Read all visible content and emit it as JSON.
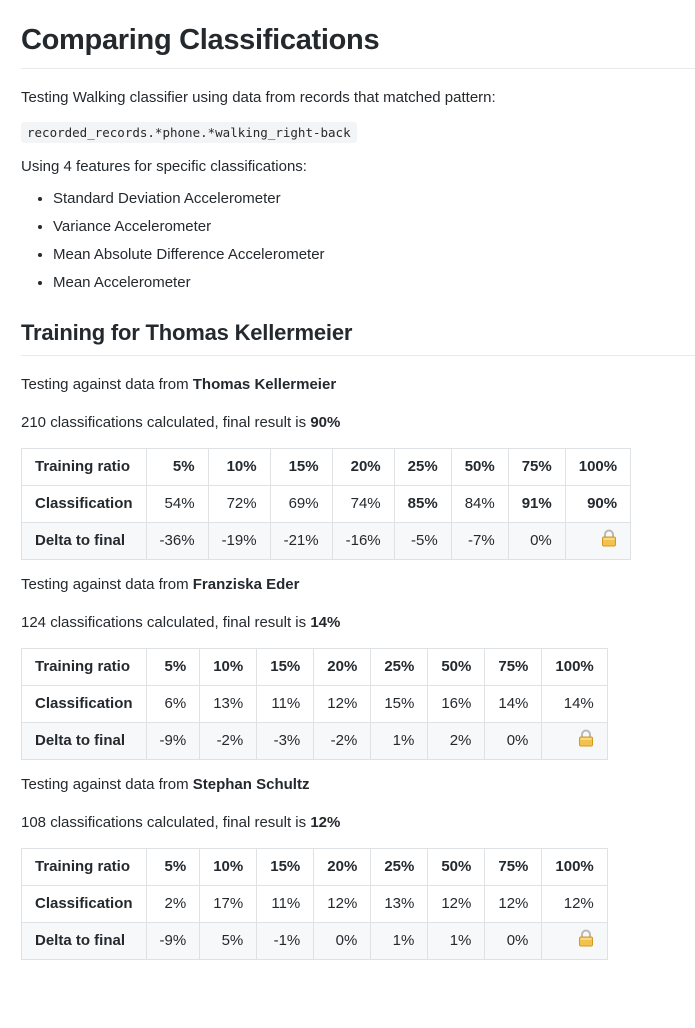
{
  "title": "Comparing Classifications",
  "intro": "Testing Walking classifier using data from records that matched pattern:",
  "pattern": "recorded_records.*phone.*walking_right-back",
  "features_intro": "Using 4 features for specific classifications:",
  "features": [
    "Standard Deviation Accelerometer",
    "Variance Accelerometer",
    "Mean Absolute Difference Accelerometer",
    "Mean Accelerometer"
  ],
  "training": {
    "heading": "Training for Thomas Kellermeier",
    "testing_prefix": "Testing against data from ",
    "calc_mid": " classifications calculated, final result is ",
    "row_labels": [
      "Training ratio",
      "Classification",
      "Delta to final"
    ],
    "ratios": [
      "5%",
      "10%",
      "15%",
      "20%",
      "25%",
      "50%",
      "75%",
      "100%"
    ],
    "lock_icon": "lock-icon",
    "tests": [
      {
        "person": "Thomas Kellermeier",
        "count": "210",
        "final": "90%",
        "classification": [
          "54%",
          "72%",
          "69%",
          "74%",
          "85%",
          "84%",
          "91%",
          "90%"
        ],
        "bold_classification": [
          4,
          6,
          7
        ],
        "delta": [
          "-36%",
          "-19%",
          "-21%",
          "-16%",
          "-5%",
          "-7%",
          "0%"
        ]
      },
      {
        "person": "Franziska Eder",
        "count": "124",
        "final": "14%",
        "classification": [
          "6%",
          "13%",
          "11%",
          "12%",
          "15%",
          "16%",
          "14%",
          "14%"
        ],
        "bold_classification": [],
        "delta": [
          "-9%",
          "-2%",
          "-3%",
          "-2%",
          "1%",
          "2%",
          "0%"
        ]
      },
      {
        "person": "Stephan Schultz",
        "count": "108",
        "final": "12%",
        "classification": [
          "2%",
          "17%",
          "11%",
          "12%",
          "13%",
          "12%",
          "12%",
          "12%"
        ],
        "bold_classification": [],
        "delta": [
          "-9%",
          "5%",
          "-1%",
          "0%",
          "1%",
          "1%",
          "0%"
        ]
      }
    ]
  }
}
